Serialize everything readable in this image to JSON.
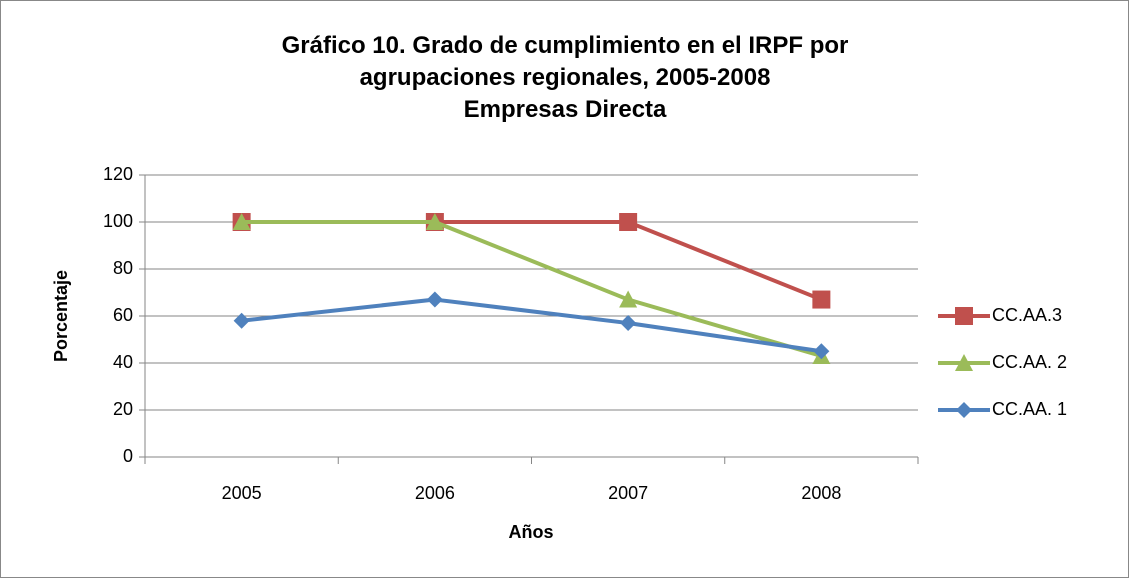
{
  "chart_data": {
    "type": "line",
    "title": "Gráfico 10. Grado de cumplimiento en el IRPF por agrupaciones regionales, 2005-2008",
    "subtitle": "Empresas Directa",
    "x_label": "Años",
    "y_label": "Porcentaje",
    "categories": [
      "2005",
      "2006",
      "2007",
      "2008"
    ],
    "series": [
      {
        "name": "CC.AA.3",
        "color": "#c0504d",
        "marker": "square",
        "values": [
          100,
          100,
          100,
          67
        ]
      },
      {
        "name": "CC.AA. 2",
        "color": "#9bbb59",
        "marker": "triangle",
        "values": [
          100,
          100,
          67,
          43
        ]
      },
      {
        "name": "CC.AA. 1",
        "color": "#4f81bd",
        "marker": "diamond",
        "values": [
          58,
          67,
          57,
          45
        ]
      }
    ],
    "ylim": [
      0,
      120
    ],
    "yticks": [
      0,
      20,
      40,
      60,
      80,
      100,
      120
    ],
    "grid": true,
    "legend": "right"
  }
}
